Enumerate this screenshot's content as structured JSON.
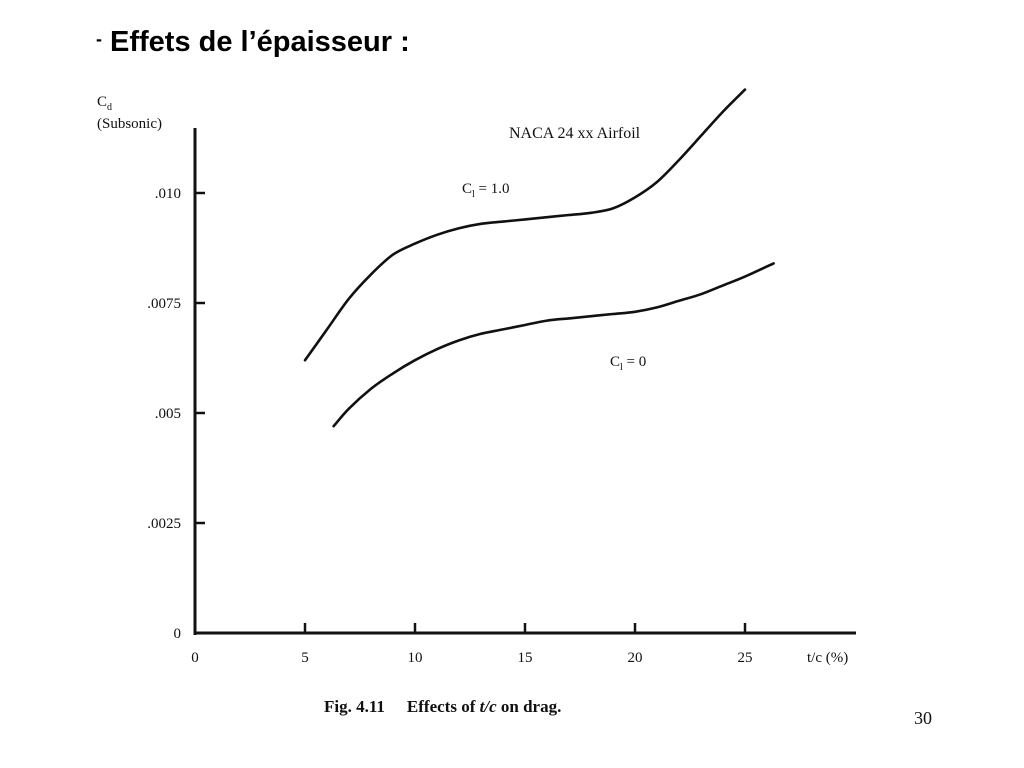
{
  "slide": {
    "title_prefix": "-",
    "title": "Effets de l’épaisseur :",
    "page_number": "30"
  },
  "chart_data": {
    "type": "line",
    "title": "NACA 24 xx Airfoil",
    "caption_fig": "Fig. 4.11",
    "caption_text_pre": "Effects of ",
    "caption_text_var": "t/c",
    "caption_text_post": " on drag.",
    "ylabel_symbol": "C",
    "ylabel_sub": "d",
    "ylabel_note": "(Subsonic)",
    "xlabel": "t/c (%)",
    "xlim": [
      0,
      30
    ],
    "ylim": [
      0,
      0.0115
    ],
    "xticks": [
      0,
      5,
      10,
      15,
      20,
      25
    ],
    "xtick_labels": [
      "0",
      "5",
      "10",
      "15",
      "20",
      "25"
    ],
    "yticks": [
      0,
      0.0025,
      0.005,
      0.0075,
      0.01
    ],
    "ytick_labels": [
      "0",
      ".0025",
      ".005",
      ".0075",
      ".010"
    ],
    "grid": false,
    "series": [
      {
        "label_symbol": "C",
        "label_sub": "l",
        "label_value": " = 1.0",
        "x": [
          5.0,
          6,
          7,
          8,
          9,
          10,
          11,
          12,
          13,
          14,
          15,
          16,
          17,
          18,
          19,
          20,
          21,
          22,
          23,
          24,
          25.0
        ],
        "y": [
          0.0062,
          0.0069,
          0.0076,
          0.00815,
          0.0086,
          0.00885,
          0.00905,
          0.0092,
          0.0093,
          0.00935,
          0.0094,
          0.00945,
          0.0095,
          0.00955,
          0.00965,
          0.0099,
          0.01025,
          0.01075,
          0.0113,
          0.01185,
          0.01235
        ]
      },
      {
        "label_symbol": "C",
        "label_sub": "l",
        "label_value": " = 0",
        "x": [
          6.3,
          7,
          8,
          9,
          10,
          11,
          12,
          13,
          14,
          15,
          16,
          17,
          18,
          19,
          20,
          21,
          22,
          23,
          24,
          25,
          26.3
        ],
        "y": [
          0.0047,
          0.0051,
          0.00555,
          0.0059,
          0.0062,
          0.00645,
          0.00665,
          0.0068,
          0.0069,
          0.007,
          0.0071,
          0.00715,
          0.0072,
          0.00725,
          0.0073,
          0.0074,
          0.00755,
          0.0077,
          0.0079,
          0.0081,
          0.0084
        ]
      }
    ]
  }
}
